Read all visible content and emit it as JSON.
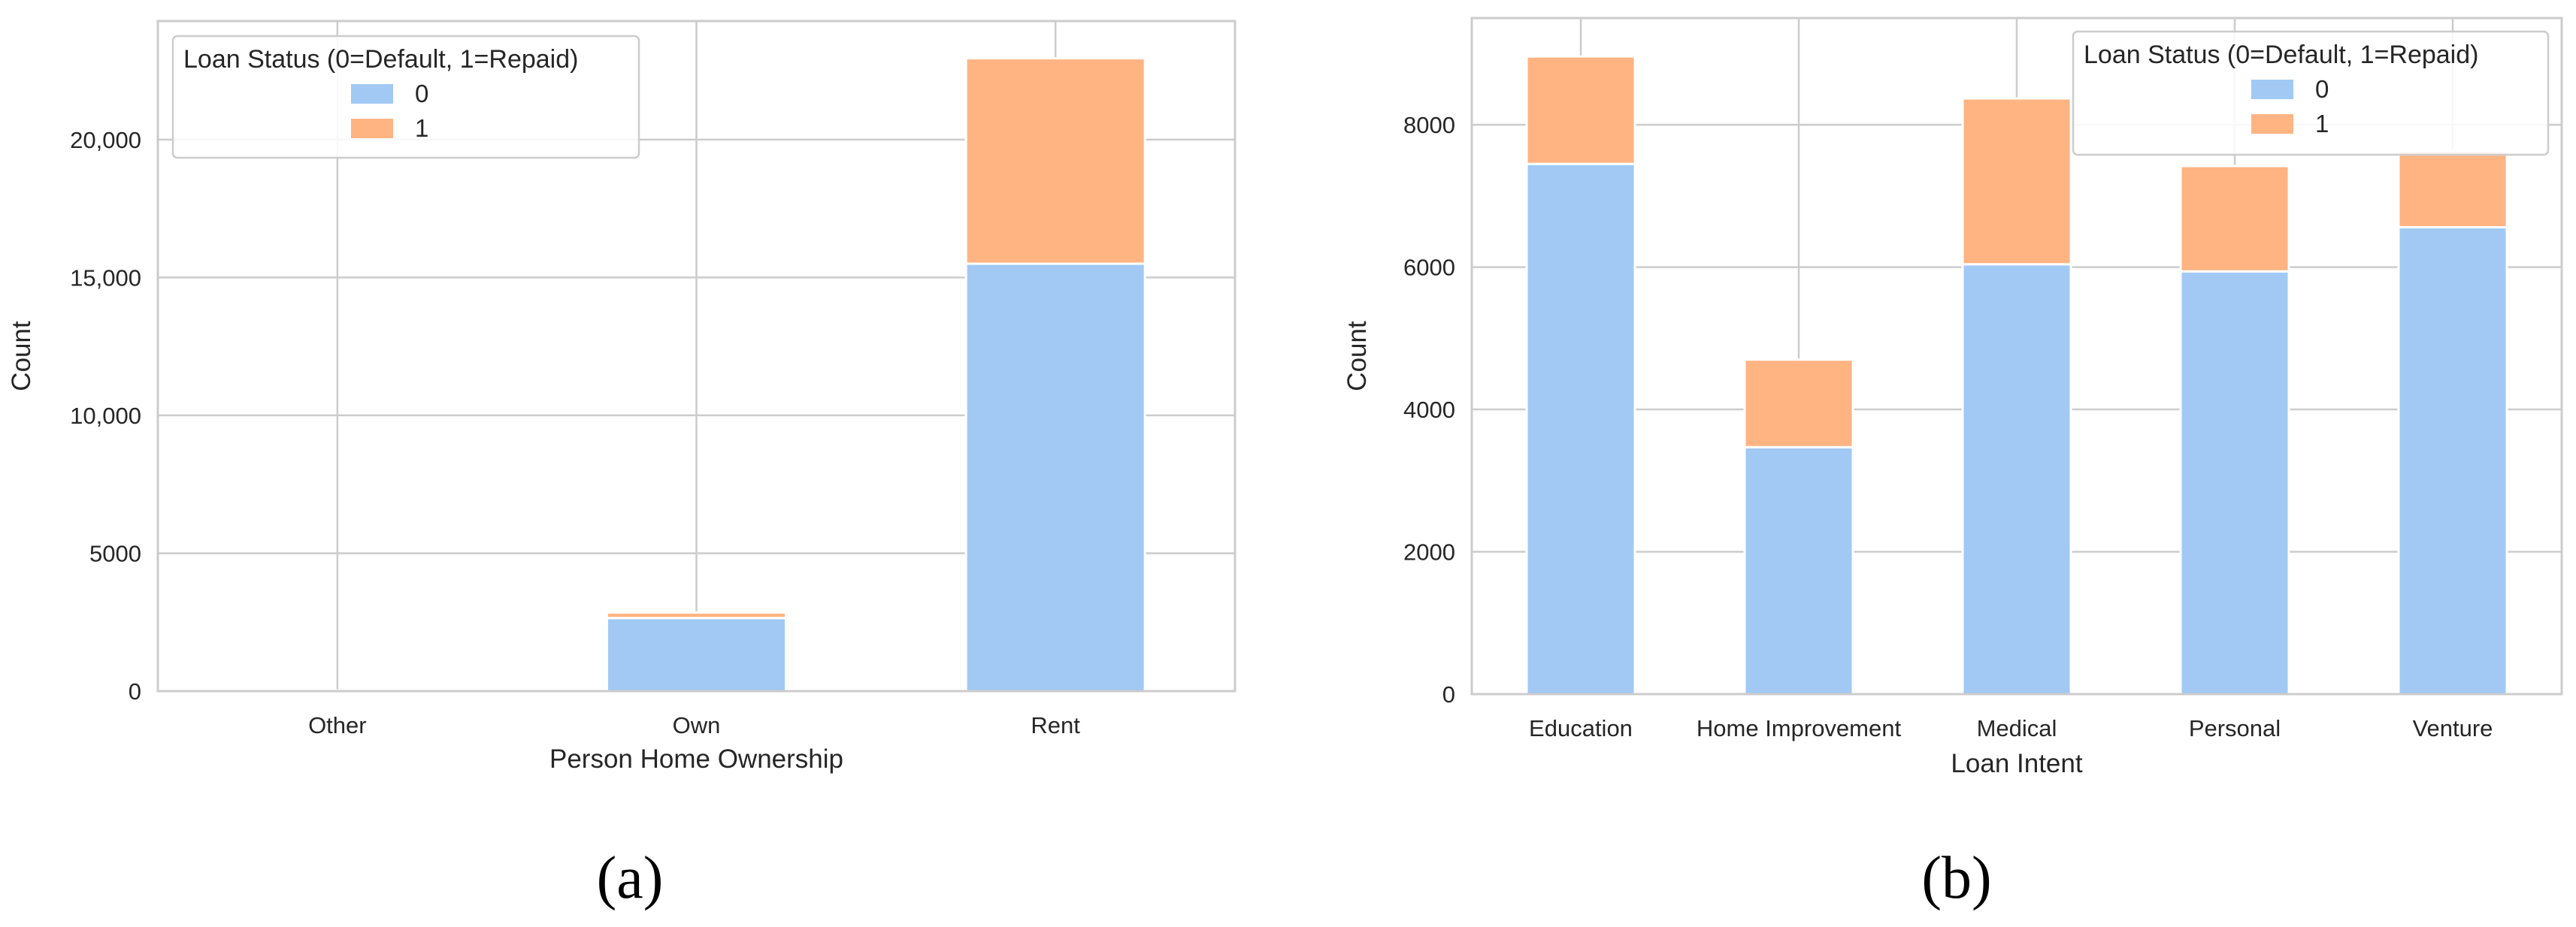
{
  "colors": {
    "series_0": "#a1c9f4",
    "series_1": "#ffb482",
    "grid": "#cccccc",
    "frame": "#cccccc",
    "text": "#262626"
  },
  "chart_data": [
    {
      "type": "bar",
      "stacked": true,
      "panel_label": "(a)",
      "xlabel": "Person Home Ownership",
      "ylabel": "Count",
      "categories": [
        "Other",
        "Own",
        "Rent"
      ],
      "series": [
        {
          "name": "0",
          "values": [
            20,
            2650,
            15500
          ]
        },
        {
          "name": "1",
          "values": [
            5,
            200,
            7450
          ]
        }
      ],
      "ylim": [
        0,
        24300
      ],
      "yticks": [
        0,
        5000,
        10000,
        15000,
        20000
      ],
      "ytick_labels": [
        "0",
        "5000",
        "10,000",
        "15,000",
        "20,000"
      ],
      "legend": {
        "title": "Loan Status (0=Default, 1=Repaid)",
        "placement": "upper-left"
      },
      "grid": true
    },
    {
      "type": "bar",
      "stacked": true,
      "panel_label": "(b)",
      "xlabel": "Loan Intent",
      "ylabel": "Count",
      "categories": [
        "Education",
        "Home Improvement",
        "Medical",
        "Personal",
        "Venture"
      ],
      "series": [
        {
          "name": "0",
          "values": [
            7450,
            3470,
            6040,
            5940,
            6560
          ]
        },
        {
          "name": "1",
          "values": [
            1510,
            1230,
            2330,
            1480,
            1070
          ]
        }
      ],
      "ylim": [
        0,
        9500
      ],
      "yticks": [
        0,
        2000,
        4000,
        6000,
        8000
      ],
      "ytick_labels": [
        "0",
        "2000",
        "4000",
        "6000",
        "8000"
      ],
      "legend": {
        "title": "Loan Status (0=Default, 1=Repaid)",
        "placement": "upper-right"
      },
      "grid": true
    }
  ]
}
